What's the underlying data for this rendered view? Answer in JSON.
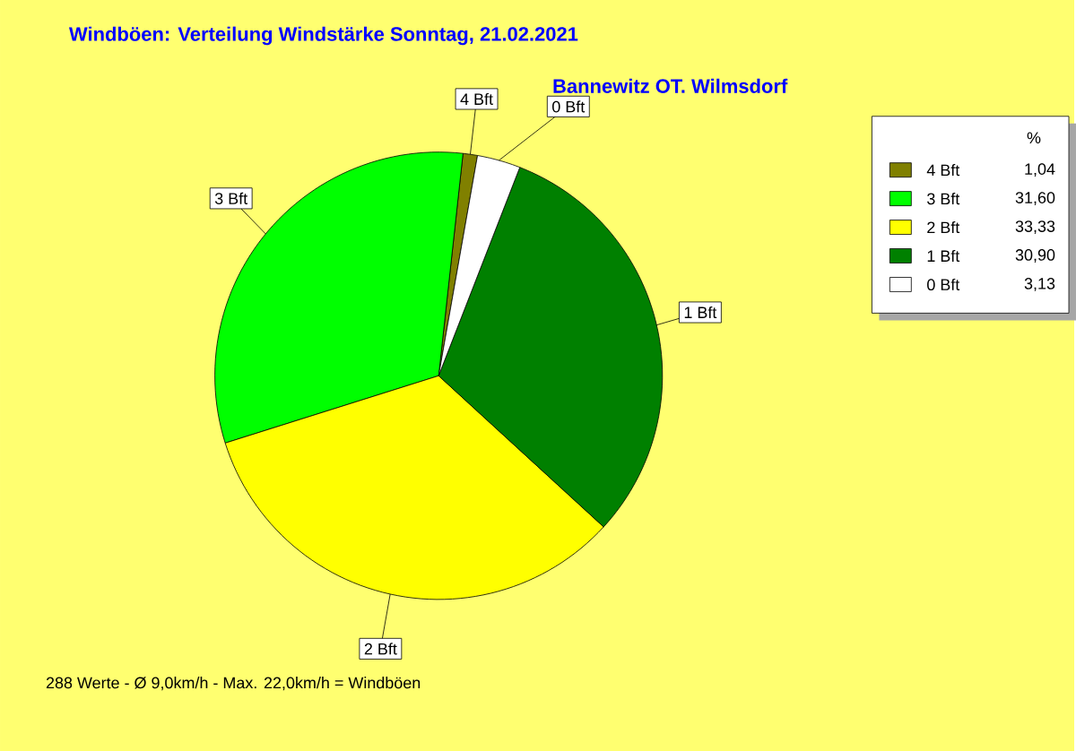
{
  "chart_data": {
    "type": "pie",
    "title": "Windböen: Verteilung Windstärke  Sonntag, 21.02.2021",
    "subtitle": "Bannewitz OT. Wilmsdorf",
    "categories": [
      "4 Bft",
      "3 Bft",
      "2 Bft",
      "1 Bft",
      "0 Bft"
    ],
    "values": [
      1.04,
      31.6,
      33.33,
      30.9,
      3.13
    ],
    "value_labels": [
      "1,04",
      "31,60",
      "33,33",
      "30,90",
      "3,13"
    ],
    "colors": [
      "#808000",
      "#00ff00",
      "#ffff00",
      "#008000",
      "#ffffff"
    ],
    "legend": "top right",
    "legend_title": "%",
    "annotations": [
      "288 Werte   -   Ø 9,0km/h  -  Max. 22,0km/h = Windböen"
    ]
  }
}
